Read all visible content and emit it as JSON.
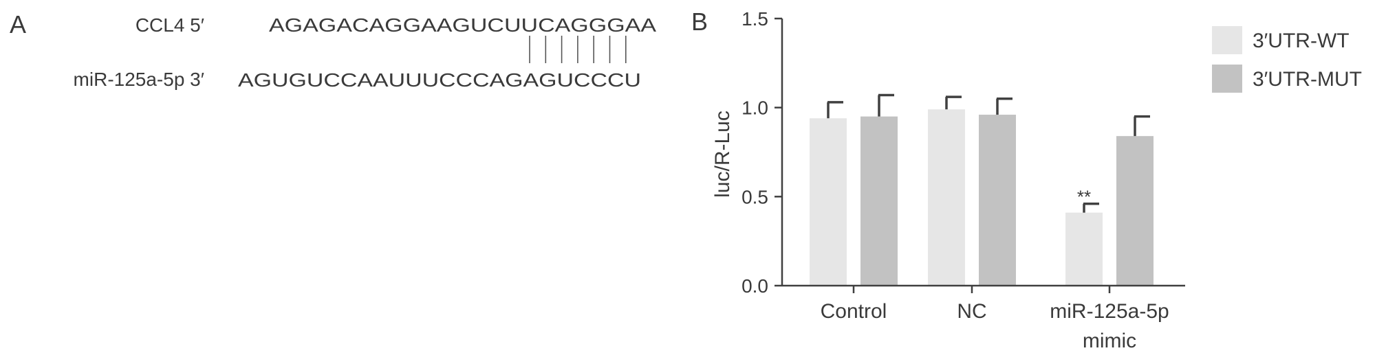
{
  "panel_a": {
    "label": "A",
    "row1_label": "CCL4 5′",
    "row1_sequence": "AGAGACAGGAAGUCUUCAGGGAA",
    "row2_label": "miR-125a-5p 3′",
    "row2_sequence": "AGUGUCCAAUUUCCCAGAGUCCCU",
    "pair_count": 7
  },
  "panel_b": {
    "label": "B"
  },
  "chart_data": {
    "type": "bar",
    "title": "",
    "xlabel": "",
    "ylabel": "luc/R-Luc",
    "ylim": [
      0,
      1.5
    ],
    "yticks": [
      "0.0",
      "0.5",
      "1.0",
      "1.5"
    ],
    "categories": [
      "Control",
      "NC",
      "miR-125a-5p mimic"
    ],
    "category_lines": [
      [
        "Control"
      ],
      [
        "NC"
      ],
      [
        "miR-125a-5p",
        "mimic"
      ]
    ],
    "series": [
      {
        "name": "3′UTR-WT",
        "values": [
          0.94,
          0.99,
          0.41
        ],
        "errors": [
          0.09,
          0.07,
          0.05
        ],
        "color": "#e6e6e6"
      },
      {
        "name": "3′UTR-MUT",
        "values": [
          0.95,
          0.96,
          0.84
        ],
        "errors": [
          0.12,
          0.09,
          0.11
        ],
        "color": "#c2c2c2"
      }
    ],
    "annotations": [
      {
        "category": "miR-125a-5p mimic",
        "series": "3′UTR-WT",
        "text": "**"
      }
    ],
    "legend": "top-right",
    "grid": false,
    "error_bar_color": "#404040"
  }
}
